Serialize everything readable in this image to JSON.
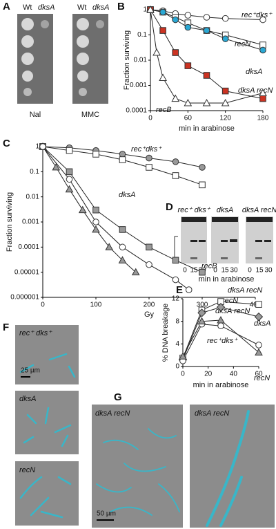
{
  "figure": {
    "panel_labels": [
      "A",
      "B",
      "C",
      "D",
      "E",
      "F",
      "G"
    ],
    "panel_a": {
      "strain_labels": [
        "Wt",
        "dksA"
      ],
      "agents": [
        "Nal",
        "MMC"
      ]
    },
    "panel_d": {
      "strains": [
        "rec⁺ dks⁺",
        "dksA",
        "dksA recN"
      ],
      "lanes": [
        "0",
        "15",
        "30"
      ],
      "x_label": "min in arabinose"
    },
    "panel_f": {
      "strains": [
        "rec⁺ dks⁺",
        "dksA",
        "recN"
      ],
      "scale_bar": "25 µm"
    },
    "panel_g": {
      "strains": [
        "dksA recN",
        "dksA recN"
      ],
      "scale_bar": "50 µm"
    }
  },
  "chart_data": [
    {
      "type": "line",
      "log_y": true,
      "y_label": "Fraction surviving",
      "x_label": "min in arabinose",
      "xlim": [
        0,
        180
      ],
      "xticks": [
        0,
        60,
        120,
        180
      ],
      "ylim": [
        0.0001,
        1
      ],
      "yticks": [
        0.0001,
        0.001,
        0.01,
        0.1,
        1
      ],
      "series": [
        {
          "name": "rec⁺dks⁺",
          "marker": "circle",
          "color": "#ffffff",
          "x": [
            0,
            20,
            40,
            60,
            90,
            120,
            180
          ],
          "values": [
            1,
            0.9,
            0.7,
            0.6,
            0.5,
            0.45,
            0.4
          ]
        },
        {
          "name": "recN",
          "marker": "square",
          "color": "#ffffff",
          "x": [
            0,
            20,
            40,
            60,
            90,
            120,
            180
          ],
          "values": [
            1,
            0.8,
            0.5,
            0.3,
            0.15,
            0.1,
            0.04
          ]
        },
        {
          "name": "dksA",
          "marker": "circle",
          "color": "#2aa8d4",
          "x": [
            0,
            20,
            40,
            60,
            90,
            120,
            180
          ],
          "values": [
            1,
            0.8,
            0.4,
            0.2,
            0.15,
            0.07,
            0.025
          ]
        },
        {
          "name": "dksA recN",
          "marker": "square",
          "color": "#cc3322",
          "x": [
            0,
            20,
            40,
            60,
            90,
            120,
            180
          ],
          "values": [
            1,
            0.15,
            0.02,
            0.006,
            0.0025,
            0.0006,
            0.0003
          ]
        },
        {
          "name": "recB",
          "marker": "triangle",
          "color": "#ffffff",
          "x": [
            0,
            10,
            20,
            40,
            60,
            90,
            120,
            180
          ],
          "values": [
            1,
            0.02,
            0.002,
            0.0003,
            0.0002,
            0.0002,
            0.0002,
            0.0005
          ]
        }
      ]
    },
    {
      "type": "line",
      "log_y": true,
      "y_label": "Fraction surviving",
      "x_label": "Gy",
      "xlim": [
        0,
        400
      ],
      "xticks": [
        0,
        100,
        200,
        300,
        400
      ],
      "ylim": [
        1e-06,
        1
      ],
      "yticks": [
        1e-06,
        1e-05,
        0.0001,
        0.001,
        0.01,
        0.1,
        1
      ],
      "series": [
        {
          "name": "rec⁺dks⁺",
          "marker": "circle",
          "color": "#999999",
          "x": [
            0,
            50,
            100,
            150,
            200,
            250,
            300
          ],
          "values": [
            1,
            0.9,
            0.7,
            0.5,
            0.35,
            0.25,
            0.15
          ]
        },
        {
          "name": "dksA",
          "marker": "square",
          "color": "#ffffff",
          "x": [
            0,
            50,
            100,
            150,
            200,
            250,
            300
          ],
          "values": [
            1,
            0.7,
            0.5,
            0.3,
            0.15,
            0.07,
            0.03
          ]
        },
        {
          "name": "recB",
          "marker": "triangle",
          "color": "#999999",
          "x": [
            0,
            25,
            50,
            75,
            100,
            125,
            150,
            175
          ],
          "values": [
            1,
            0.15,
            0.02,
            0.003,
            0.0005,
            0.0001,
            3e-05,
            1e-05
          ]
        },
        {
          "name": "recN",
          "marker": "square",
          "color": "#999999",
          "x": [
            0,
            50,
            100,
            150,
            200,
            250,
            300
          ],
          "values": [
            1,
            0.1,
            0.003,
            0.0005,
            0.0001,
            3e-05,
            1e-05
          ]
        },
        {
          "name": "dksA recN",
          "marker": "circle",
          "color": "#ffffff",
          "x": [
            0,
            50,
            100,
            150,
            200,
            250,
            275
          ],
          "values": [
            1,
            0.05,
            0.001,
            0.0001,
            2e-05,
            5e-06,
            2e-06
          ]
        }
      ]
    },
    {
      "type": "line",
      "log_y": false,
      "y_label": "% DNA breakage",
      "x_label": "min in arabinose",
      "xlim": [
        0,
        60
      ],
      "xticks": [
        0,
        20,
        40,
        60
      ],
      "ylim": [
        0,
        12
      ],
      "yticks": [
        0,
        4,
        8,
        12
      ],
      "series": [
        {
          "name": "dksA recN",
          "marker": "square",
          "color": "#ffffff",
          "x": [
            0,
            15,
            30,
            60
          ],
          "values": [
            1.5,
            10,
            11.5,
            11
          ]
        },
        {
          "name": "dksA",
          "marker": "diamond",
          "color": "#999999",
          "x": [
            0,
            15,
            30,
            60
          ],
          "values": [
            1.2,
            9.5,
            10.5,
            8.8
          ]
        },
        {
          "name": "rec⁺dks⁺",
          "marker": "circle",
          "color": "#ffffff",
          "x": [
            0,
            15,
            30,
            60
          ],
          "values": [
            1,
            7.5,
            7.2,
            3.8
          ]
        },
        {
          "name": "recN",
          "marker": "triangle",
          "color": "#999999",
          "x": [
            0,
            15,
            30,
            60
          ],
          "values": [
            1.8,
            8,
            8.2,
            2.5
          ]
        }
      ]
    }
  ]
}
